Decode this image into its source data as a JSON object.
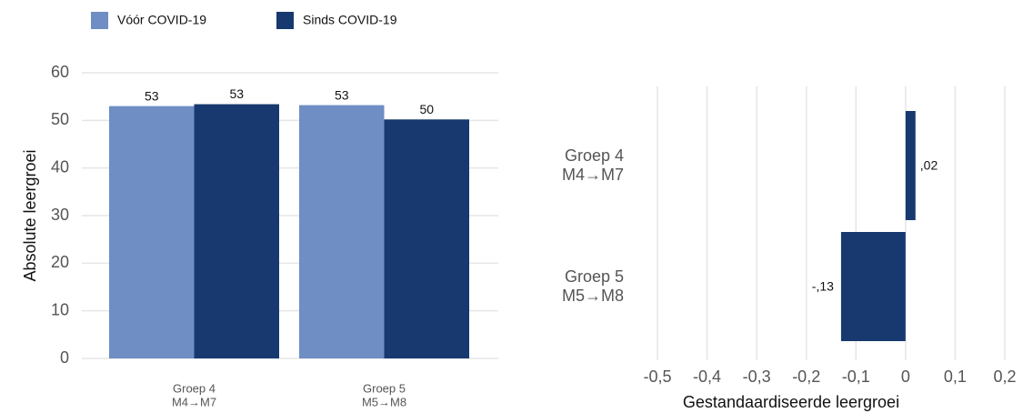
{
  "chart_data": [
    {
      "type": "bar",
      "y_label": "Absolute leergroei",
      "categories": [
        [
          "Groep 4",
          "M4→M7"
        ],
        [
          "Groep 5",
          "M5→M8"
        ]
      ],
      "series": [
        {
          "name": "Vóór COVID-19",
          "color": "#6e8ec4",
          "values": [
            53,
            53.2
          ],
          "value_labels": [
            "53",
            "53"
          ]
        },
        {
          "name": "Sinds COVID-19",
          "color": "#17396f",
          "values": [
            53.4,
            50.2
          ],
          "value_labels": [
            "53",
            "50"
          ]
        }
      ],
      "ylim": [
        0,
        60
      ],
      "yticks": [
        0,
        10,
        20,
        30,
        40,
        50,
        60
      ],
      "grid": true,
      "legend": "top"
    },
    {
      "type": "hbar",
      "x_label": "Gestandaardiseerde leergroei",
      "categories": [
        [
          "Groep 4",
          "M4→M7"
        ],
        [
          "Groep 5",
          "M5→M8"
        ]
      ],
      "values": [
        0.02,
        -0.13
      ],
      "value_labels": [
        ",02",
        "-,13"
      ],
      "color": "#17396f",
      "xlim": [
        -0.5,
        0.2
      ],
      "xticks": [
        {
          "value": -0.5,
          "label": "-0,5"
        },
        {
          "value": -0.4,
          "label": "-0,4"
        },
        {
          "value": -0.3,
          "label": "-0,3"
        },
        {
          "value": -0.2,
          "label": "-0,2"
        },
        {
          "value": -0.1,
          "label": "-0,1"
        },
        0,
        {
          "value": 0.1,
          "label": "0,1"
        },
        {
          "value": 0.2,
          "label": "0,2"
        }
      ],
      "grid": true
    }
  ]
}
